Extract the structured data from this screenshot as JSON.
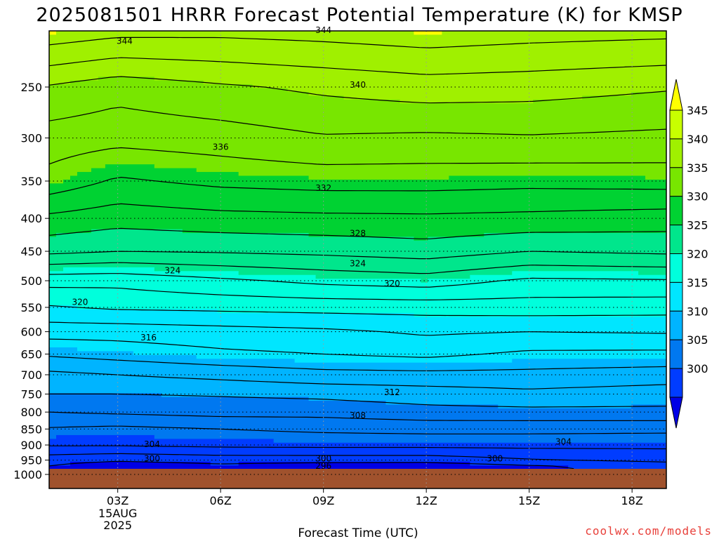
{
  "title": "2025081501 HRRR Forecast Potential Temperature (K) for KMSP",
  "credit": "coolwx.com/models",
  "chart_data": {
    "type": "heatmap",
    "title": "2025081501 HRRR Forecast Potential Temperature (K) for KMSP",
    "xlabel": "Forecast Time (UTC)",
    "ylabel": "",
    "x_ticks": [
      {
        "label": "03Z",
        "hour": 3,
        "sub": [
          "15AUG",
          "2025"
        ]
      },
      {
        "label": "06Z",
        "hour": 6,
        "sub": []
      },
      {
        "label": "09Z",
        "hour": 9,
        "sub": []
      },
      {
        "label": "12Z",
        "hour": 12,
        "sub": []
      },
      {
        "label": "15Z",
        "hour": 15,
        "sub": []
      },
      {
        "label": "18Z",
        "hour": 18,
        "sub": []
      }
    ],
    "xlim": [
      1,
      19
    ],
    "y_ticks": [
      250,
      300,
      350,
      400,
      450,
      500,
      550,
      600,
      650,
      700,
      750,
      800,
      850,
      900,
      950,
      1000
    ],
    "ylim": [
      1000,
      200
    ],
    "y_scale": "log-pressure",
    "grid": true,
    "ground_pressure": 980,
    "ground_color": "#a0522d",
    "colorbar": {
      "labels": [
        "345",
        "340",
        "335",
        "330",
        "325",
        "320",
        "315",
        "310",
        "305",
        "300"
      ],
      "colors": [
        "#ffff00",
        "#c8ff00",
        "#a0f000",
        "#78e600",
        "#00d232",
        "#00e68c",
        "#00ffdc",
        "#00e6ff",
        "#00b4ff",
        "#0078f0",
        "#003cff",
        "#0000e6"
      ],
      "levels": [
        300,
        305,
        310,
        315,
        320,
        325,
        330,
        335,
        340,
        345
      ],
      "extend": "both"
    },
    "contour_interval": 2,
    "contour_labels": [
      {
        "value": "344",
        "hour": 3.2,
        "p": 212
      },
      {
        "value": "344",
        "hour": 9.0,
        "p": 204
      },
      {
        "value": "340",
        "hour": 10.0,
        "p": 248
      },
      {
        "value": "336",
        "hour": 6.0,
        "p": 310
      },
      {
        "value": "332",
        "hour": 9.0,
        "p": 359
      },
      {
        "value": "328",
        "hour": 10.0,
        "p": 422
      },
      {
        "value": "324",
        "hour": 4.6,
        "p": 482
      },
      {
        "value": "324",
        "hour": 10.0,
        "p": 470
      },
      {
        "value": "320",
        "hour": 1.9,
        "p": 540
      },
      {
        "value": "320",
        "hour": 11.0,
        "p": 505
      },
      {
        "value": "316",
        "hour": 3.9,
        "p": 613
      },
      {
        "value": "312",
        "hour": 11.0,
        "p": 745
      },
      {
        "value": "308",
        "hour": 10.0,
        "p": 810
      },
      {
        "value": "304",
        "hour": 4.0,
        "p": 898
      },
      {
        "value": "304",
        "hour": 16.0,
        "p": 890
      },
      {
        "value": "300",
        "hour": 4.0,
        "p": 945
      },
      {
        "value": "300",
        "hour": 9.0,
        "p": 945
      },
      {
        "value": "300",
        "hour": 14.0,
        "p": 945
      },
      {
        "value": "296",
        "hour": 9.0,
        "p": 970
      }
    ],
    "profile_pressures": [
      200,
      250,
      300,
      350,
      400,
      450,
      500,
      550,
      600,
      650,
      700,
      750,
      800,
      850,
      900,
      950,
      970,
      980
    ],
    "profiles": [
      {
        "hour": 1,
        "theta": [
          345.8,
          339.8,
          337.0,
          335.3,
          331.5,
          328.5,
          322.7,
          319.8,
          316.8,
          314.3,
          311.5,
          310.0,
          308.0,
          305.8,
          304.2,
          300.8,
          300.0,
          300.0
        ]
      },
      {
        "hour": 3,
        "theta": [
          345.2,
          338.8,
          336.6,
          333.7,
          330.8,
          328.0,
          322.6,
          320.3,
          316.8,
          314.8,
          312.0,
          310.0,
          308.3,
          305.5,
          304.2,
          300.3,
          298.8,
          298.6
        ]
      },
      {
        "hour": 6,
        "theta": [
          345.0,
          339.7,
          337.0,
          334.5,
          331.3,
          328.2,
          323.6,
          320.5,
          317.2,
          315.6,
          312.6,
          310.2,
          308.7,
          306.0,
          304.5,
          300.8,
          299.6,
          299.6
        ]
      },
      {
        "hour": 9,
        "theta": [
          345.2,
          340.4,
          337.8,
          334.8,
          331.5,
          328.5,
          324.5,
          320.7,
          317.6,
          316.0,
          313.3,
          310.5,
          308.7,
          306.4,
          304.6,
          300.8,
          299.0,
          298.2
        ]
      },
      {
        "hour": 12,
        "theta": [
          345.6,
          341.0,
          337.6,
          334.8,
          331.6,
          329.0,
          325.0,
          320.8,
          318.3,
          316.5,
          313.4,
          311.0,
          309.3,
          306.6,
          304.6,
          300.8,
          298.8,
          298.5
        ]
      },
      {
        "hour": 15,
        "theta": [
          345.2,
          340.8,
          337.8,
          334.6,
          331.4,
          328.0,
          323.6,
          321.0,
          318.0,
          315.6,
          313.4,
          311.5,
          309.4,
          306.6,
          304.6,
          301.8,
          299.8,
          299.5
        ]
      },
      {
        "hour": 19,
        "theta": [
          345.0,
          340.2,
          337.5,
          334.8,
          331.0,
          328.4,
          323.8,
          320.8,
          318.2,
          315.5,
          313.0,
          311.0,
          309.5,
          306.5,
          304.5,
          302.5,
          301.0,
          301.0
        ]
      }
    ]
  }
}
